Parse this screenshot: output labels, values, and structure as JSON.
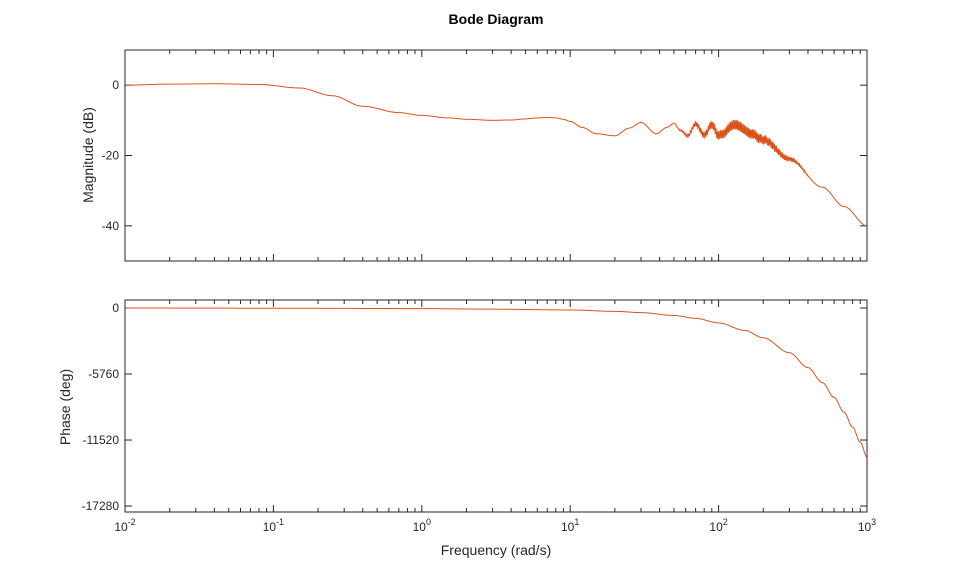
{
  "chart_data": {
    "type": "line",
    "title": "Bode Diagram",
    "xlabel": "Frequency (rad/s)",
    "xscale": "log",
    "xlim": [
      0.01,
      1000
    ],
    "x_ticks": [
      {
        "base": "10",
        "exp": "-2"
      },
      {
        "base": "10",
        "exp": "-1"
      },
      {
        "base": "10",
        "exp": "0"
      },
      {
        "base": "10",
        "exp": "1"
      },
      {
        "base": "10",
        "exp": "2"
      },
      {
        "base": "10",
        "exp": "3"
      }
    ],
    "grid": false,
    "line_color": "#D95319",
    "subplots": [
      {
        "ylabel": "Magnitude (dB)",
        "ylim": [
          -50,
          10
        ],
        "yticks": [
          0,
          -20,
          -40
        ],
        "ytick_labels": [
          "0",
          "-20",
          "-40"
        ],
        "x": [
          0.01,
          0.02,
          0.04,
          0.08,
          0.15,
          0.25,
          0.4,
          0.7,
          1.0,
          1.5,
          2.0,
          3.0,
          4.0,
          5.0,
          6.0,
          7.0,
          8.0,
          9.0,
          10.0,
          12.0,
          15.0,
          20.0,
          25.0,
          30.0,
          38.0,
          45.0,
          50.0,
          55.0,
          62.0,
          70.0,
          80.0,
          90.0,
          100.0,
          130.0,
          160.0,
          200.0,
          300.0,
          500.0,
          700.0,
          1000.0
        ],
        "y": [
          0,
          0.3,
          0.4,
          0.2,
          -0.8,
          -3.0,
          -6.0,
          -7.8,
          -8.6,
          -9.3,
          -9.7,
          -10.0,
          -9.9,
          -9.6,
          -9.3,
          -9.2,
          -9.3,
          -9.7,
          -10.3,
          -12.0,
          -13.8,
          -14.4,
          -12.2,
          -10.6,
          -13.8,
          -12.0,
          -10.8,
          -12.8,
          -14.4,
          -11.0,
          -14.2,
          -11.2,
          -14.3,
          -11.3,
          -13.5,
          -15.5,
          -21.0,
          -29.0,
          -34.5,
          -40.0
        ],
        "ripple": {
          "from": 50,
          "to": 420,
          "amplitude_db": 1.6,
          "cycles_per_decade": 30
        }
      },
      {
        "ylabel": "Phase (deg)",
        "ylim": [
          -17800,
          700
        ],
        "yticks": [
          0,
          -5760,
          -11520,
          -17280
        ],
        "ytick_labels": [
          "0",
          "-5760",
          "-11520",
          "-17280"
        ],
        "x": [
          0.01,
          0.1,
          1.0,
          3.0,
          10.0,
          20.0,
          30.0,
          50.0,
          70.0,
          100.0,
          150.0,
          200.0,
          300.0,
          400.0,
          500.0,
          600.0,
          700.0,
          800.0,
          900.0,
          1000.0
        ],
        "y": [
          0,
          -17,
          -50,
          -100,
          -170,
          -290,
          -400,
          -650,
          -900,
          -1300,
          -1950,
          -2600,
          -3900,
          -5200,
          -6500,
          -7800,
          -9100,
          -10400,
          -11700,
          -13000
        ]
      }
    ]
  }
}
